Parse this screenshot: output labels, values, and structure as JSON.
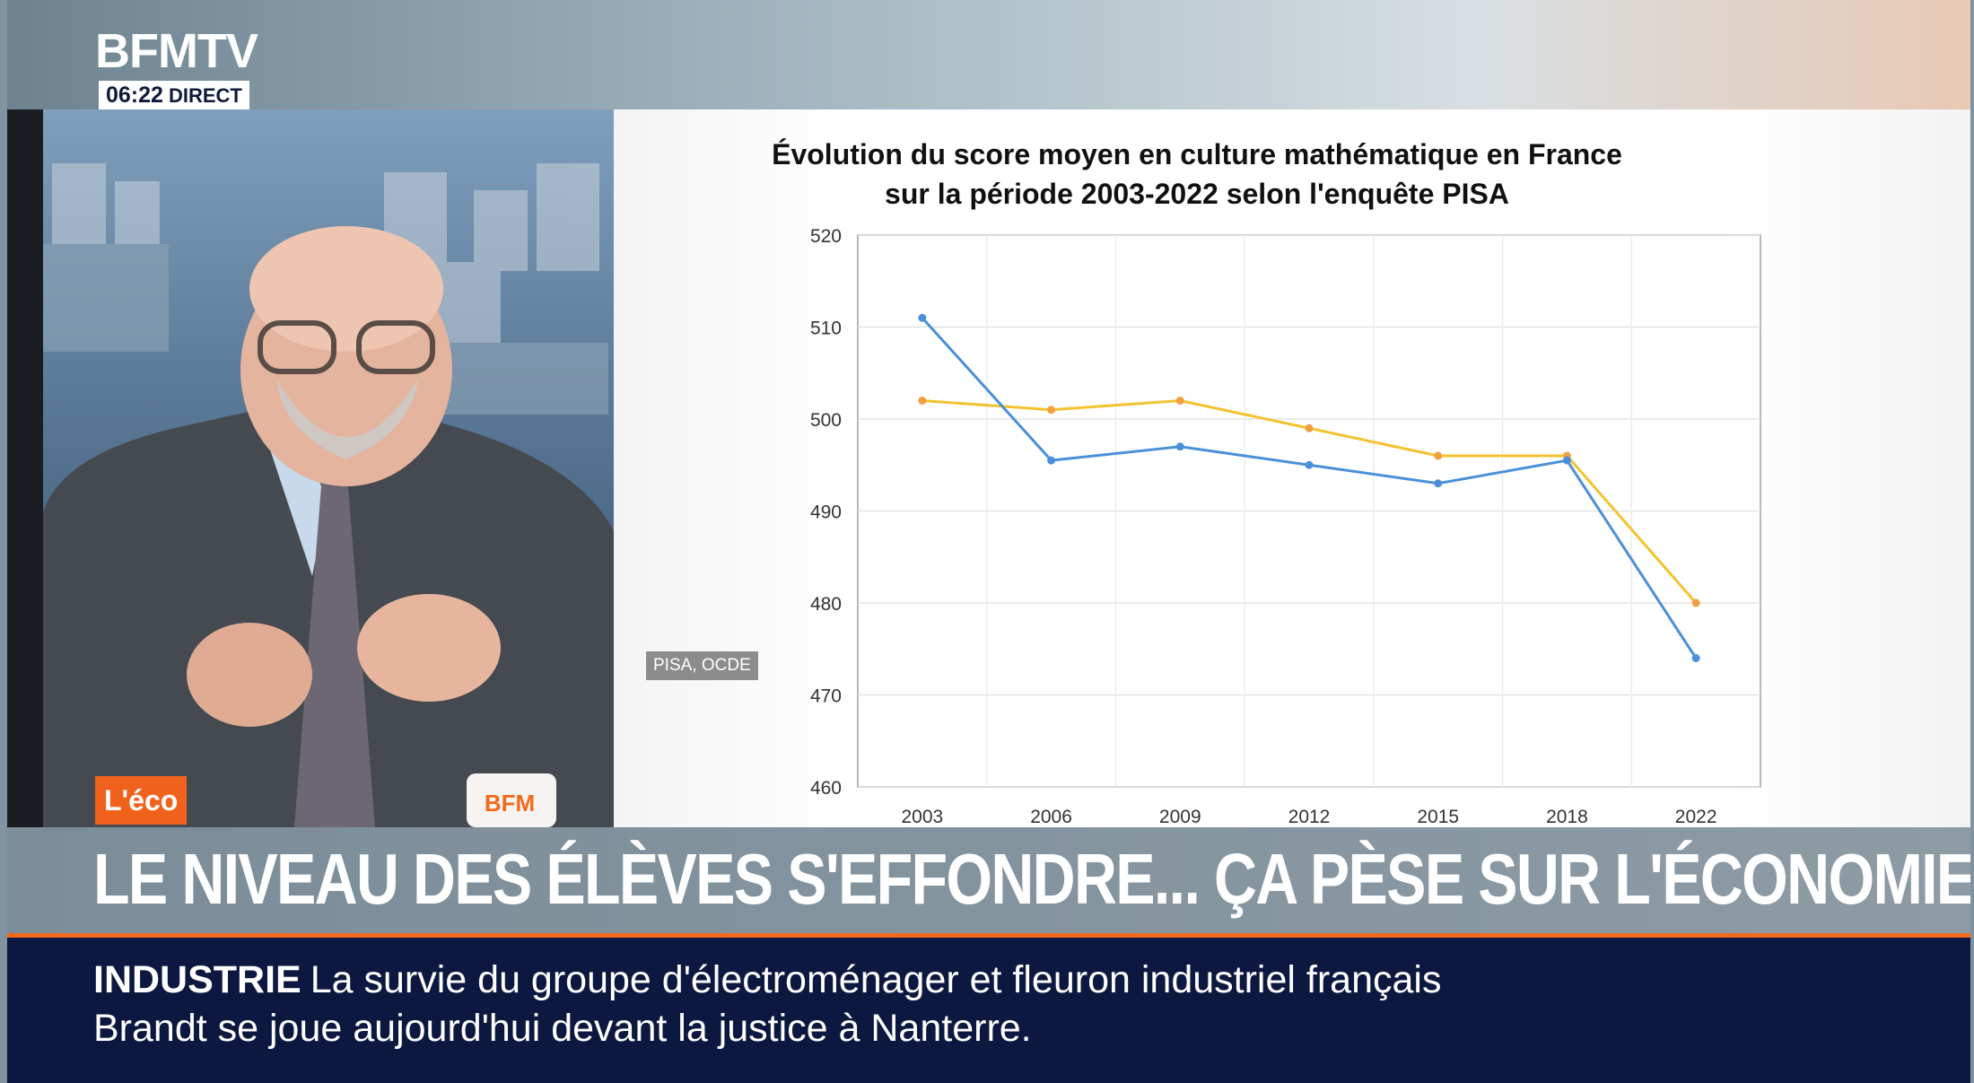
{
  "channel": {
    "logo": "BFMTV",
    "time": "06:22",
    "live": "DIRECT"
  },
  "segment_tag": "L'éco",
  "mug_label": "BFM",
  "source_label": "PISA, OCDE",
  "headline": "LE NIVEAU DES ÉLÈVES S'EFFONDRE... ÇA PÈSE SUR L'ÉCONOMIE",
  "ticker": {
    "category": "INDUSTRIE",
    "line1": "La survie du groupe d'électroménager et fleuron industriel français",
    "line2": "Brandt se joue aujourd'hui devant la justice à Nanterre."
  },
  "colors": {
    "accent_orange": "#f26b1d",
    "ticker_bg": "#0c1840",
    "series_blue": "#4a90d9",
    "series_yellow": "#f2c230"
  },
  "chart_data": {
    "type": "line",
    "title_line1": "Évolution du score moyen en culture mathématique en France",
    "title_line2": "sur la période 2003-2022 selon l'enquête PISA",
    "categories": [
      "2003",
      "2006",
      "2009",
      "2012",
      "2015",
      "2018",
      "2022"
    ],
    "series": [
      {
        "values": [
          511,
          495.5,
          497,
          495,
          493,
          495.5,
          474
        ]
      },
      {
        "values": [
          502,
          501,
          502,
          499,
          496,
          496,
          480
        ]
      }
    ],
    "ylim": [
      460,
      520
    ],
    "yticks": [
      460,
      470,
      480,
      490,
      500,
      510,
      520
    ],
    "grid": true,
    "legend": "none"
  }
}
